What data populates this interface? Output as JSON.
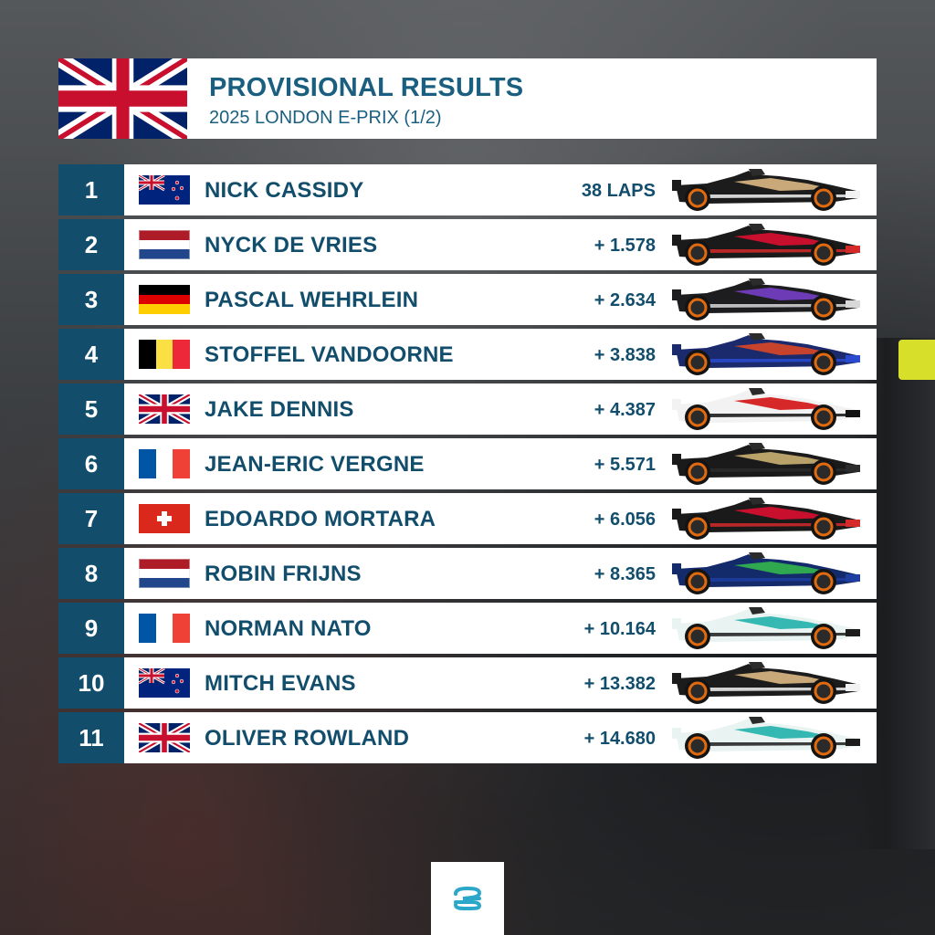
{
  "header": {
    "title": "PROVISIONAL RESULTS",
    "subtitle": "2025 LONDON E-PRIX (1/2)",
    "flag": "uk-flag-icon"
  },
  "results": [
    {
      "pos": "1",
      "driver": "NICK CASSIDY",
      "gap": "38 LAPS",
      "flag": "nz",
      "car": {
        "body": "#1c1c1c",
        "accent": "#c9a97a",
        "stripe": "#f2f2f2"
      }
    },
    {
      "pos": "2",
      "driver": "NYCK DE VRIES",
      "gap": "+ 1.578",
      "flag": "nl",
      "car": {
        "body": "#1a1a1a",
        "accent": "#c8102e",
        "stripe": "#d42a2a"
      }
    },
    {
      "pos": "3",
      "driver": "PASCAL WEHRLEIN",
      "gap": "+ 2.634",
      "flag": "de",
      "car": {
        "body": "#1d1d1f",
        "accent": "#6c3bb5",
        "stripe": "#d8d8d8"
      }
    },
    {
      "pos": "4",
      "driver": "STOFFEL VANDOORNE",
      "gap": "+ 3.838",
      "flag": "be",
      "car": {
        "body": "#1a2a6c",
        "accent": "#c8432b",
        "stripe": "#2a4bd0"
      }
    },
    {
      "pos": "5",
      "driver": "JAKE DENNIS",
      "gap": "+ 4.387",
      "flag": "gb",
      "car": {
        "body": "#f2f2f2",
        "accent": "#d62828",
        "stripe": "#111111"
      }
    },
    {
      "pos": "6",
      "driver": "JEAN-ERIC VERGNE",
      "gap": "+ 5.571",
      "flag": "fr",
      "car": {
        "body": "#1a1a1a",
        "accent": "#b8a26a",
        "stripe": "#2b2b2b"
      }
    },
    {
      "pos": "7",
      "driver": "EDOARDO MORTARA",
      "gap": "+ 6.056",
      "flag": "ch",
      "car": {
        "body": "#1a1a1a",
        "accent": "#c8102e",
        "stripe": "#d42a2a"
      }
    },
    {
      "pos": "8",
      "driver": "ROBIN FRIJNS",
      "gap": "+ 8.365",
      "flag": "nl",
      "car": {
        "body": "#132a6b",
        "accent": "#2fa84f",
        "stripe": "#1e3ea0"
      }
    },
    {
      "pos": "9",
      "driver": "NORMAN NATO",
      "gap": "+ 10.164",
      "flag": "fr",
      "car": {
        "body": "#e8f3f2",
        "accent": "#35b8b2",
        "stripe": "#1c1c1c"
      }
    },
    {
      "pos": "10",
      "driver": "MITCH EVANS",
      "gap": "+ 13.382",
      "flag": "nz",
      "car": {
        "body": "#1c1c1c",
        "accent": "#c9a97a",
        "stripe": "#f2f2f2"
      }
    },
    {
      "pos": "11",
      "driver": "OLIVER ROWLAND",
      "gap": "+ 14.680",
      "flag": "gb",
      "car": {
        "body": "#e8f3f2",
        "accent": "#35b8b2",
        "stripe": "#1c1c1c"
      }
    }
  ],
  "footer": {
    "logo": "formula-e-logo-icon",
    "logo_color": "#2aa7c9"
  }
}
